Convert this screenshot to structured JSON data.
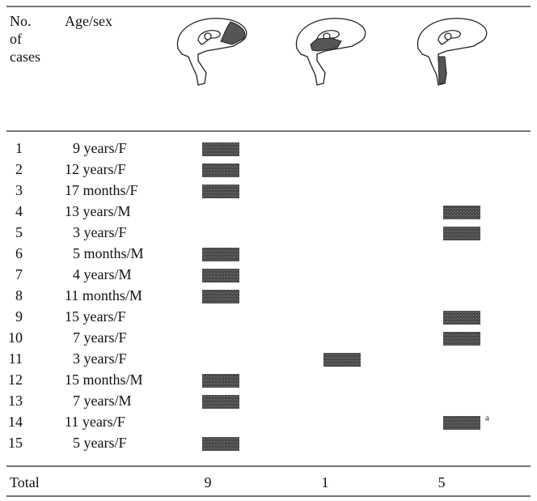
{
  "table": {
    "headers": [
      "No. of cases",
      "Age/sex"
    ],
    "rows": [
      {
        "no": "1",
        "age_sex": "9 years/F",
        "marks": [
          true,
          false,
          false
        ]
      },
      {
        "no": "2",
        "age_sex": "12 years/F",
        "marks": [
          true,
          false,
          false
        ]
      },
      {
        "no": "3",
        "age_sex": "17 months/F",
        "marks": [
          true,
          false,
          false
        ]
      },
      {
        "no": "4",
        "age_sex": "13 years/M",
        "marks": [
          false,
          false,
          true
        ]
      },
      {
        "no": "5",
        "age_sex": "3 years/F",
        "marks": [
          false,
          false,
          true
        ]
      },
      {
        "no": "6",
        "age_sex": "5 months/M",
        "marks": [
          true,
          false,
          false
        ]
      },
      {
        "no": "7",
        "age_sex": "4 years/M",
        "marks": [
          true,
          false,
          false
        ]
      },
      {
        "no": "8",
        "age_sex": "11 months/M",
        "marks": [
          true,
          false,
          false
        ]
      },
      {
        "no": "9",
        "age_sex": "15 years/F",
        "marks": [
          false,
          false,
          true
        ]
      },
      {
        "no": "10",
        "age_sex": "7 years/F",
        "marks": [
          false,
          false,
          true
        ]
      },
      {
        "no": "11",
        "age_sex": "3 years/F",
        "marks": [
          false,
          true,
          false
        ]
      },
      {
        "no": "12",
        "age_sex": "15 months/M",
        "marks": [
          true,
          false,
          false
        ]
      },
      {
        "no": "13",
        "age_sex": "7 years/M",
        "marks": [
          true,
          false,
          false
        ]
      },
      {
        "no": "14",
        "age_sex": "11 years/F",
        "marks": [
          false,
          false,
          true
        ],
        "note": "a"
      },
      {
        "no": "15",
        "age_sex": "5 years/F",
        "marks": [
          true,
          false,
          false
        ]
      }
    ],
    "total": {
      "label": "Total",
      "values": [
        9,
        1,
        5
      ]
    }
  }
}
